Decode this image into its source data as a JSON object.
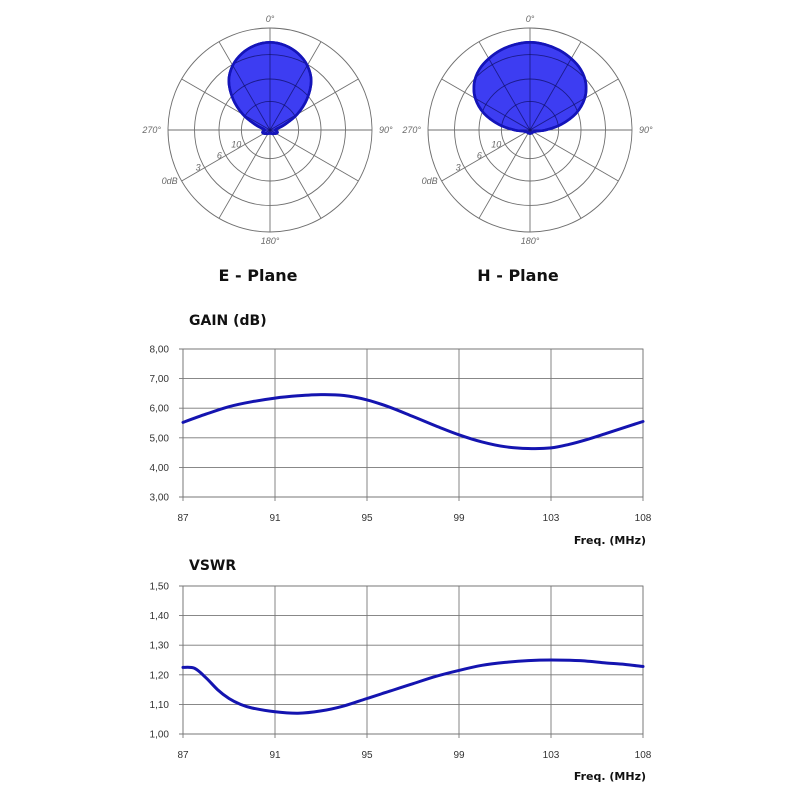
{
  "polar": {
    "angle_labels": [
      "0°",
      "90°",
      "180°",
      "270°"
    ],
    "radial_labels": [
      "10",
      "6",
      "3",
      "0dB"
    ],
    "line_color": "#6f6f6f"
  },
  "chart_data": [
    {
      "type": "polar",
      "title": "E - Plane",
      "series": [
        {
          "fill": "#3d3df2",
          "stroke": "#1414b8",
          "points": [
            {
              "angle": 0,
              "r": 1.0
            },
            {
              "angle": 10,
              "r": 0.98
            },
            {
              "angle": 20,
              "r": 0.93
            },
            {
              "angle": 30,
              "r": 0.85
            },
            {
              "angle": 40,
              "r": 0.73
            },
            {
              "angle": 50,
              "r": 0.55
            },
            {
              "angle": 60,
              "r": 0.36
            },
            {
              "angle": 70,
              "r": 0.18
            },
            {
              "angle": 80,
              "r": 0.08
            },
            {
              "angle": 90,
              "r": 0.06
            },
            {
              "angle": 100,
              "r": 0.08
            },
            {
              "angle": 110,
              "r": 0.09
            },
            {
              "angle": 120,
              "r": 0.08
            },
            {
              "angle": 135,
              "r": 0.06
            },
            {
              "angle": 150,
              "r": 0.05
            },
            {
              "angle": 165,
              "r": 0.04
            },
            {
              "angle": 180,
              "r": 0.04
            },
            {
              "angle": 195,
              "r": 0.04
            },
            {
              "angle": 210,
              "r": 0.05
            },
            {
              "angle": 225,
              "r": 0.06
            },
            {
              "angle": 240,
              "r": 0.08
            },
            {
              "angle": 250,
              "r": 0.09
            },
            {
              "angle": 260,
              "r": 0.08
            },
            {
              "angle": 270,
              "r": 0.06
            },
            {
              "angle": 280,
              "r": 0.08
            },
            {
              "angle": 290,
              "r": 0.18
            },
            {
              "angle": 300,
              "r": 0.36
            },
            {
              "angle": 310,
              "r": 0.55
            },
            {
              "angle": 320,
              "r": 0.73
            },
            {
              "angle": 330,
              "r": 0.85
            },
            {
              "angle": 340,
              "r": 0.93
            },
            {
              "angle": 350,
              "r": 0.98
            }
          ]
        }
      ]
    },
    {
      "type": "polar",
      "title": "H - Plane",
      "series": [
        {
          "fill": "#3d3df2",
          "stroke": "#1414b8",
          "points": [
            {
              "angle": 0,
              "r": 1.0
            },
            {
              "angle": 10,
              "r": 0.99
            },
            {
              "angle": 20,
              "r": 0.97
            },
            {
              "angle": 30,
              "r": 0.94
            },
            {
              "angle": 40,
              "r": 0.9
            },
            {
              "angle": 50,
              "r": 0.83
            },
            {
              "angle": 60,
              "r": 0.72
            },
            {
              "angle": 70,
              "r": 0.56
            },
            {
              "angle": 80,
              "r": 0.36
            },
            {
              "angle": 90,
              "r": 0.18
            },
            {
              "angle": 100,
              "r": 0.08
            },
            {
              "angle": 115,
              "r": 0.05
            },
            {
              "angle": 135,
              "r": 0.04
            },
            {
              "angle": 160,
              "r": 0.04
            },
            {
              "angle": 180,
              "r": 0.04
            },
            {
              "angle": 200,
              "r": 0.04
            },
            {
              "angle": 225,
              "r": 0.04
            },
            {
              "angle": 245,
              "r": 0.05
            },
            {
              "angle": 260,
              "r": 0.08
            },
            {
              "angle": 270,
              "r": 0.18
            },
            {
              "angle": 280,
              "r": 0.36
            },
            {
              "angle": 290,
              "r": 0.56
            },
            {
              "angle": 300,
              "r": 0.72
            },
            {
              "angle": 310,
              "r": 0.83
            },
            {
              "angle": 320,
              "r": 0.9
            },
            {
              "angle": 330,
              "r": 0.94
            },
            {
              "angle": 340,
              "r": 0.97
            },
            {
              "angle": 350,
              "r": 0.99
            }
          ]
        }
      ]
    },
    {
      "type": "line",
      "title": "GAIN (dB)",
      "xlabel": "Freq. (MHz)",
      "ylabel": "",
      "x_ticks": [
        "87",
        "91",
        "95",
        "99",
        "103",
        "108"
      ],
      "y_ticks": [
        "3,00",
        "4,00",
        "5,00",
        "6,00",
        "7,00",
        "8,00"
      ],
      "ylim": [
        3,
        8
      ],
      "grid": true,
      "line_color": "#1414b0",
      "series": [
        {
          "points": [
            [
              87,
              5.52
            ],
            [
              88,
              5.8
            ],
            [
              89,
              6.05
            ],
            [
              90,
              6.22
            ],
            [
              91,
              6.34
            ],
            [
              92,
              6.42
            ],
            [
              93,
              6.46
            ],
            [
              94,
              6.43
            ],
            [
              95,
              6.28
            ],
            [
              96,
              6.03
            ],
            [
              97,
              5.72
            ],
            [
              98,
              5.4
            ],
            [
              99,
              5.1
            ],
            [
              100,
              4.86
            ],
            [
              101,
              4.7
            ],
            [
              102,
              4.64
            ],
            [
              103,
              4.66
            ],
            [
              104,
              4.78
            ],
            [
              105,
              4.95
            ],
            [
              106,
              5.15
            ],
            [
              107,
              5.35
            ],
            [
              108,
              5.55
            ]
          ]
        }
      ]
    },
    {
      "type": "line",
      "title": "VSWR",
      "xlabel": "Freq. (MHz)",
      "ylabel": "",
      "x_ticks": [
        "87",
        "91",
        "95",
        "99",
        "103",
        "108"
      ],
      "y_ticks": [
        "1,00",
        "1,10",
        "1,20",
        "1,30",
        "1,40",
        "1,50"
      ],
      "ylim": [
        1.0,
        1.5
      ],
      "grid": true,
      "line_color": "#1414b0",
      "series": [
        {
          "points": [
            [
              87,
              1.225
            ],
            [
              87.5,
              1.222
            ],
            [
              88,
              1.19
            ],
            [
              88.5,
              1.15
            ],
            [
              89,
              1.12
            ],
            [
              89.5,
              1.1
            ],
            [
              90,
              1.088
            ],
            [
              91,
              1.075
            ],
            [
              92,
              1.07
            ],
            [
              93,
              1.078
            ],
            [
              94,
              1.095
            ],
            [
              95,
              1.12
            ],
            [
              96,
              1.145
            ],
            [
              97,
              1.17
            ],
            [
              98,
              1.195
            ],
            [
              99,
              1.215
            ],
            [
              100,
              1.232
            ],
            [
              101,
              1.242
            ],
            [
              102,
              1.248
            ],
            [
              103,
              1.25
            ],
            [
              104,
              1.249
            ],
            [
              105,
              1.246
            ],
            [
              106,
              1.24
            ],
            [
              107,
              1.235
            ],
            [
              108,
              1.228
            ]
          ]
        }
      ]
    }
  ]
}
